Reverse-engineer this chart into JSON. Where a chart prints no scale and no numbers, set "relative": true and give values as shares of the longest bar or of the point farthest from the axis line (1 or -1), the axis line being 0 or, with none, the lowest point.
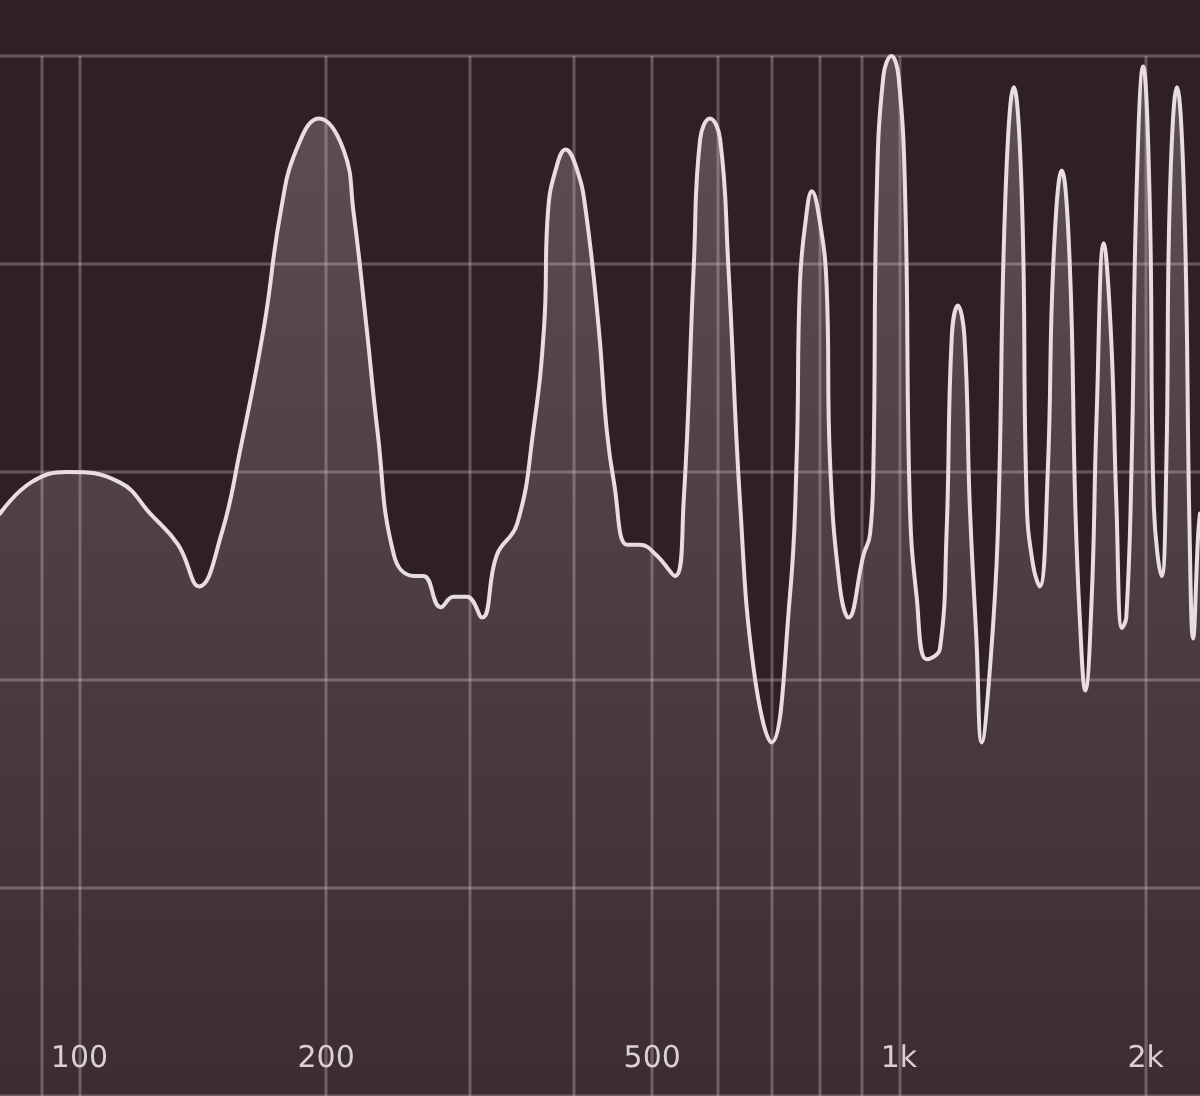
{
  "chart_data": {
    "type": "area",
    "relative": true,
    "log": "x",
    "marker": "none",
    "grid": true,
    "color": "#e8dde0",
    "xlim": [
      80,
      2330
    ],
    "xticks": [
      {
        "value": 90,
        "label": null
      },
      100,
      200,
      {
        "value": 300,
        "label": null
      },
      {
        "value": 400,
        "label": null
      },
      500,
      {
        "value": 600,
        "label": null
      },
      {
        "value": 700,
        "label": null
      },
      {
        "value": 800,
        "label": null
      },
      {
        "value": 900,
        "label": null
      },
      {
        "value": 1000,
        "label": "1k"
      },
      {
        "value": 2000,
        "label": "2k"
      }
    ],
    "x": [
      80,
      87.3,
      96.7,
      112,
      122,
      132,
      140,
      149,
      157,
      168,
      176,
      184,
      196,
      210,
      216,
      224,
      231,
      242,
      256,
      263,
      276,
      286,
      297,
      310,
      323,
      342,
      358,
      369,
      373,
      381,
      392,
      405,
      415,
      430,
      440,
      449,
      466,
      483,
      506,
      533,
      546,
      562,
      572,
      588,
      605,
      619,
      640,
      665,
      699,
      736,
      750,
      757,
      769,
      783,
      801,
      816,
      824,
      847,
      868,
      905,
      922,
      931,
      939,
      957,
      979,
      999,
      1018,
      1031,
      1051,
      1081,
      1122,
      1143,
      1160,
      1180,
      1202,
      1220,
      1243,
      1262,
      1291,
      1320,
      1348,
      1381,
      1413,
      1432,
      1458,
      1485,
      1519,
      1543,
      1580,
      1616,
      1641,
      1662,
      1688,
      1719,
      1742,
      1778,
      1815,
      1842,
      1871,
      1894,
      1923,
      1948,
      1986,
      2023,
      2046,
      2092,
      2120,
      2140,
      2184,
      2229,
      2263,
      2285,
      2318,
      2330
    ],
    "values": [
      0.56,
      0.59,
      0.6,
      0.59,
      0.56,
      0.53,
      0.49,
      0.54,
      0.62,
      0.74,
      0.85,
      0.91,
      0.94,
      0.91,
      0.85,
      0.74,
      0.64,
      0.52,
      0.5,
      0.5,
      0.47,
      0.48,
      0.48,
      0.46,
      0.52,
      0.55,
      0.64,
      0.74,
      0.85,
      0.89,
      0.91,
      0.89,
      0.85,
      0.74,
      0.64,
      0.59,
      0.53,
      0.53,
      0.52,
      0.5,
      0.57,
      0.8,
      0.92,
      0.94,
      0.92,
      0.8,
      0.57,
      0.41,
      0.34,
      0.48,
      0.61,
      0.78,
      0.84,
      0.87,
      0.84,
      0.78,
      0.61,
      0.49,
      0.46,
      0.52,
      0.54,
      0.61,
      0.86,
      0.98,
      1,
      0.98,
      0.86,
      0.57,
      0.48,
      0.42,
      0.43,
      0.54,
      0.73,
      0.76,
      0.73,
      0.57,
      0.44,
      0.34,
      0.41,
      0.54,
      0.86,
      0.97,
      0.86,
      0.57,
      0.51,
      0.49,
      0.6,
      0.8,
      0.89,
      0.8,
      0.57,
      0.46,
      0.39,
      0.48,
      0.65,
      0.82,
      0.73,
      0.57,
      0.45,
      0.46,
      0.61,
      0.86,
      0.99,
      0.86,
      0.57,
      0.5,
      0.61,
      0.86,
      0.97,
      0.86,
      0.54,
      0.44,
      0.54,
      0.56
    ]
  }
}
